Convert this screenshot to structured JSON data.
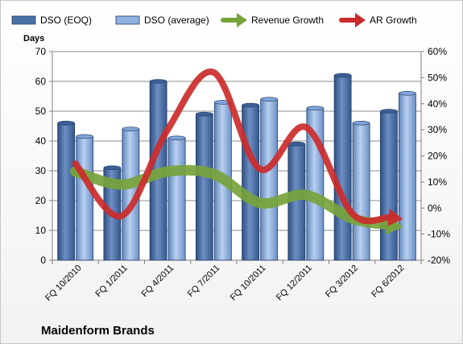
{
  "chart_data": {
    "type": "bar",
    "title": "",
    "brand": "Maidenform Brands",
    "ylabel": "Days",
    "categories": [
      "FQ 10/2010",
      "FQ 1/2011",
      "FQ 4/2011",
      "FQ 7/2011",
      "FQ 10/2011",
      "FQ 12/2011",
      "FQ 3/2012",
      "FQ 6/2012"
    ],
    "ylim": [
      0,
      70
    ],
    "yticks": [
      "0",
      "10",
      "20",
      "30",
      "40",
      "50",
      "60",
      "70"
    ],
    "y2lim": [
      -20,
      60
    ],
    "y2ticks": [
      "-20%",
      "-10%",
      "0%",
      "10%",
      "20%",
      "30%",
      "40%",
      "50%",
      "60%"
    ],
    "grid": true,
    "legend": "top",
    "series": [
      {
        "name": "DSO (EOQ)",
        "type": "bar",
        "axis": "left",
        "color": "#4a6fa5",
        "values": [
          46,
          31,
          60,
          49,
          52,
          39,
          62,
          50
        ]
      },
      {
        "name": "DSO (average)",
        "type": "bar",
        "axis": "left",
        "color": "#8fb2df",
        "values": [
          41.5,
          44,
          41,
          53,
          54,
          51,
          46,
          56
        ]
      },
      {
        "name": "Revenue Growth",
        "type": "line",
        "axis": "right",
        "unit": "%",
        "color": "#77a33b",
        "values": [
          14,
          9,
          14,
          13,
          2,
          5,
          -4,
          -7
        ]
      },
      {
        "name": "AR Growth",
        "type": "line",
        "axis": "right",
        "unit": "%",
        "color": "#cc2b2b",
        "values": [
          17,
          -3,
          30,
          52,
          15,
          31,
          -2,
          -4
        ]
      }
    ]
  }
}
